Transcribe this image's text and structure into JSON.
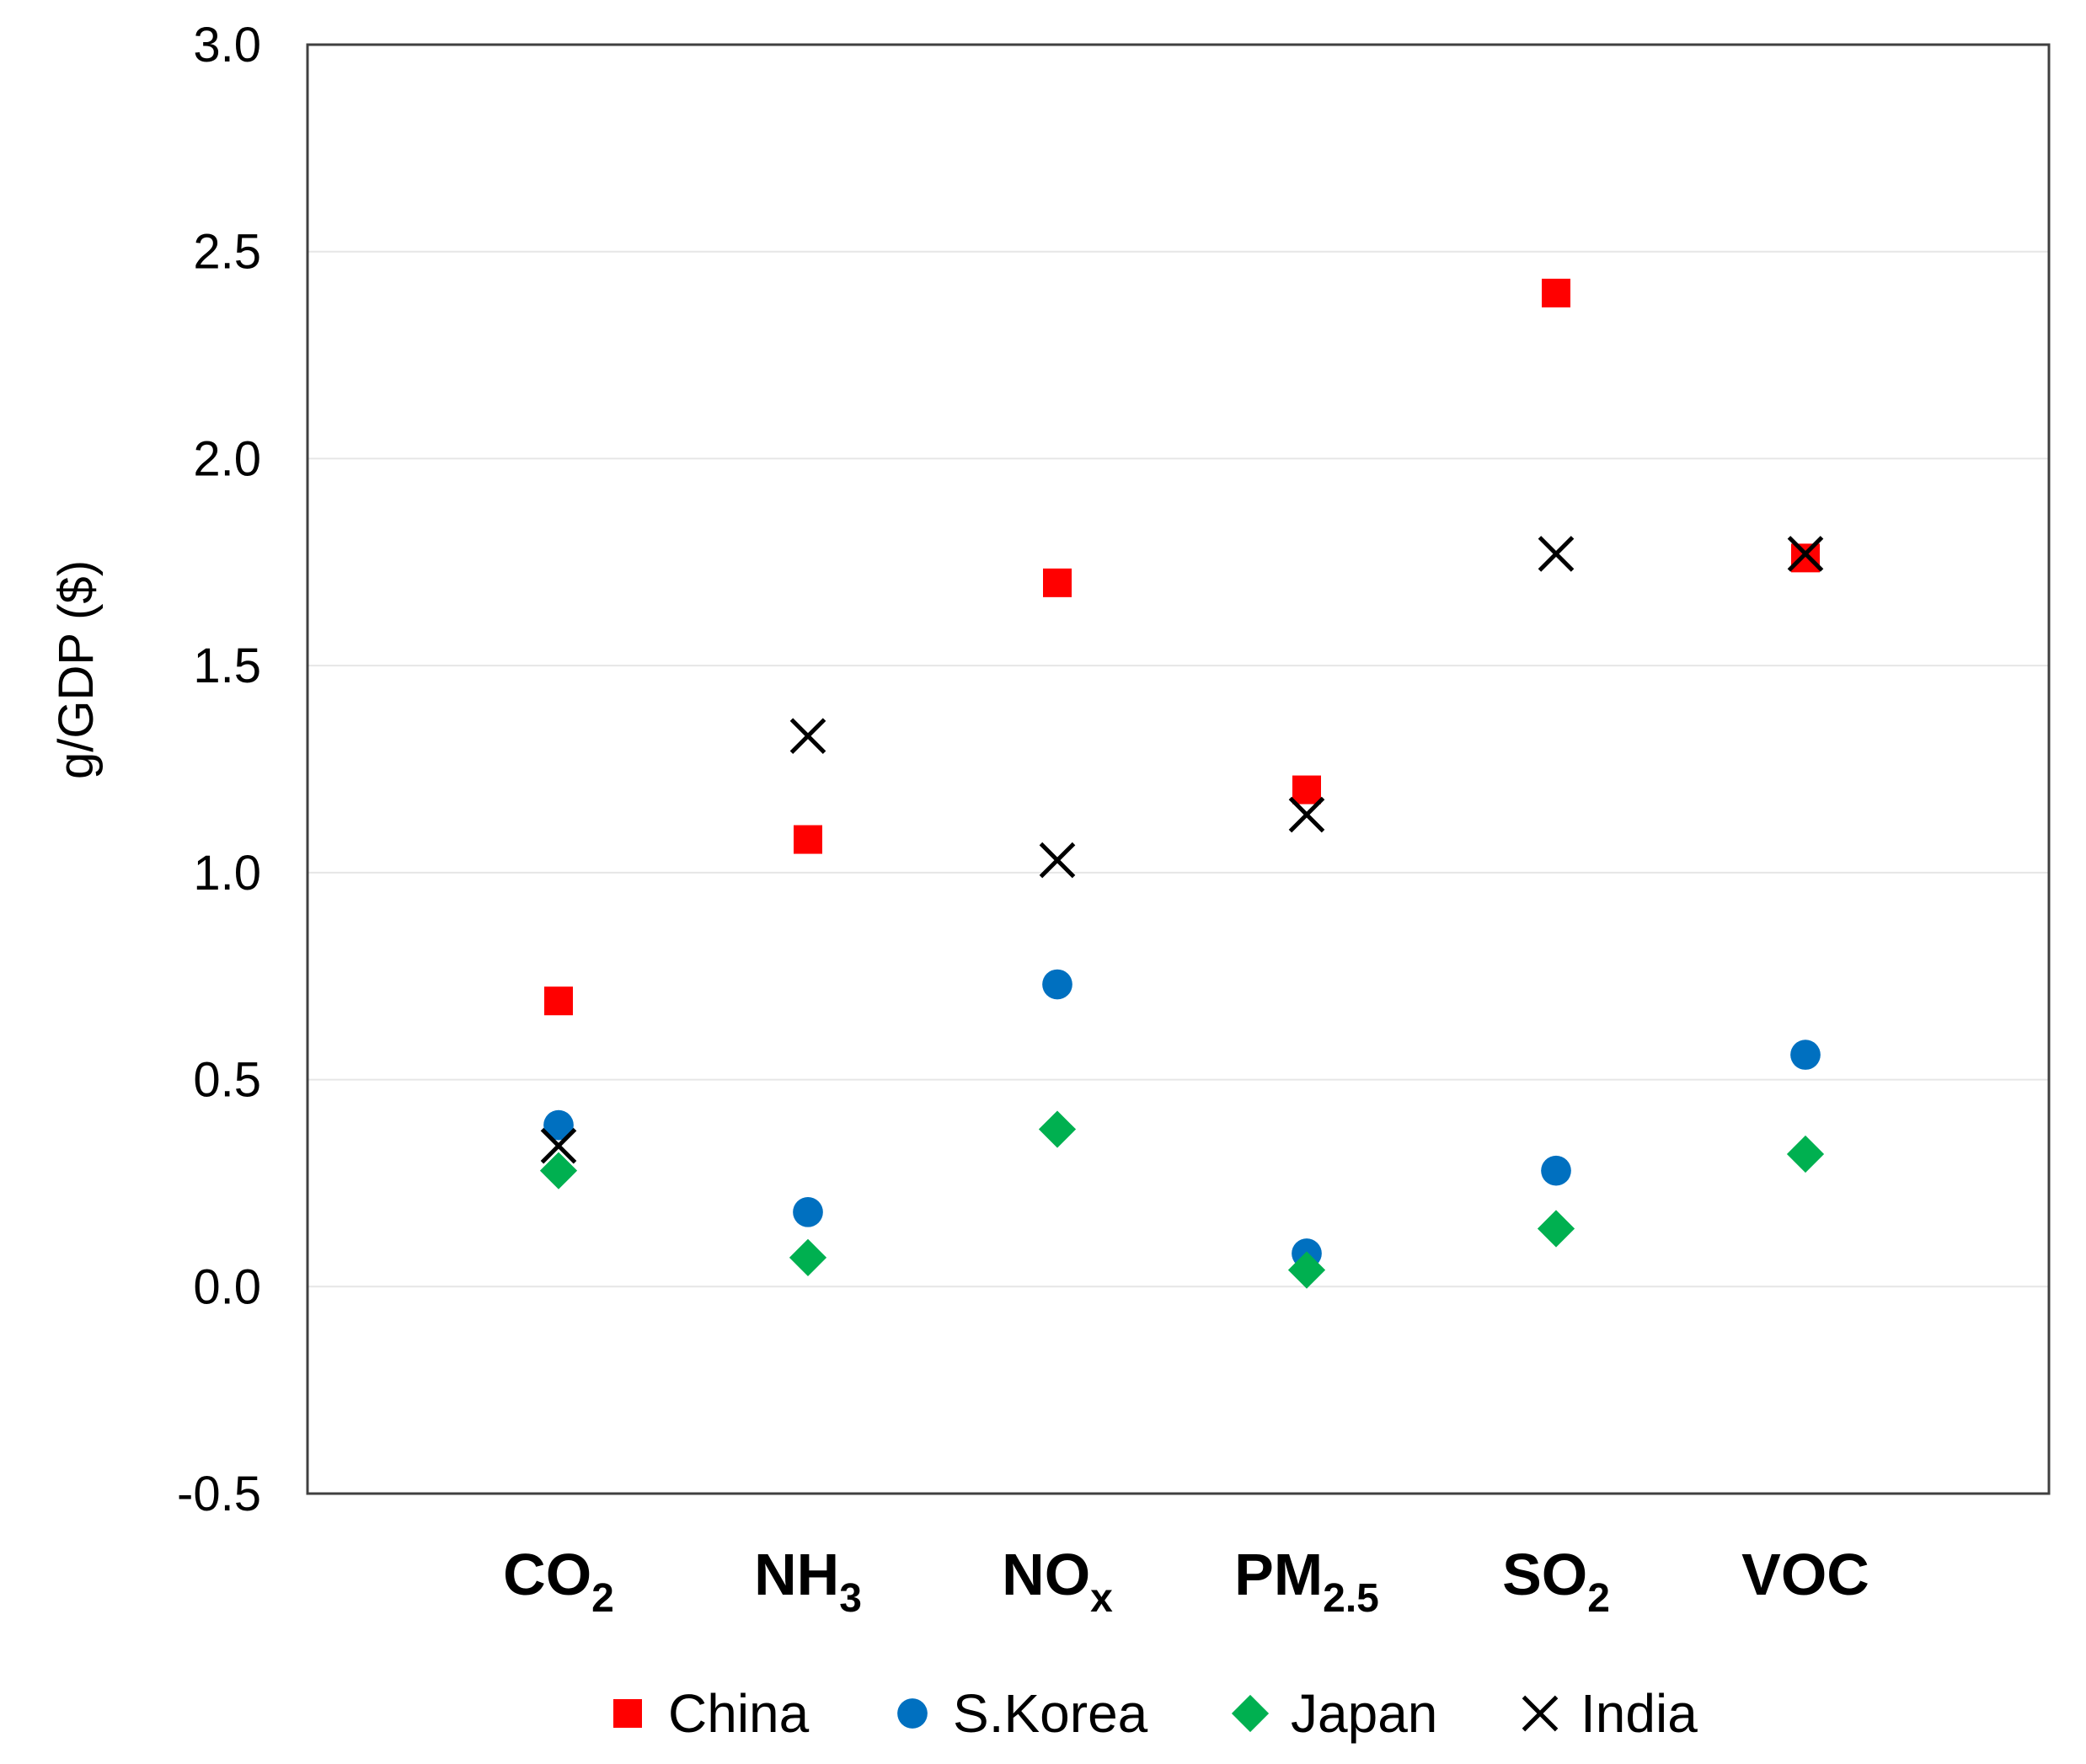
{
  "chart_data": {
    "type": "scatter",
    "title": "",
    "xlabel": "",
    "ylabel": "g/GDP ($)",
    "ylim": [
      -0.5,
      3.0
    ],
    "yticks": [
      -0.5,
      0.0,
      0.5,
      1.0,
      1.5,
      2.0,
      2.5,
      3.0
    ],
    "ytick_labels": [
      "-0.5",
      "0.0",
      "0.5",
      "1.0",
      "1.5",
      "2.0",
      "2.5",
      "3.0"
    ],
    "grid": true,
    "legend_position": "bottom",
    "categories": [
      {
        "base": "CO",
        "sub": "2"
      },
      {
        "base": "NH",
        "sub": "3"
      },
      {
        "base": "NO",
        "sub": "x"
      },
      {
        "base": "PM",
        "sub": "2.5"
      },
      {
        "base": "SO",
        "sub": "2"
      },
      {
        "base": "VOC",
        "sub": ""
      }
    ],
    "series": [
      {
        "name": "China",
        "marker": "square",
        "color": "#ff0000",
        "values": [
          0.69,
          1.08,
          1.7,
          1.2,
          2.4,
          1.76
        ]
      },
      {
        "name": "S.Korea",
        "marker": "circle",
        "color": "#0070c0",
        "values": [
          0.39,
          0.18,
          0.73,
          0.08,
          0.28,
          0.56
        ]
      },
      {
        "name": "Japan",
        "marker": "diamond",
        "color": "#00b050",
        "values": [
          0.28,
          0.07,
          0.38,
          0.04,
          0.14,
          0.32
        ]
      },
      {
        "name": "India",
        "marker": "x",
        "color": "#000000",
        "values": [
          0.34,
          1.33,
          1.03,
          1.14,
          1.77,
          1.77
        ]
      }
    ]
  }
}
